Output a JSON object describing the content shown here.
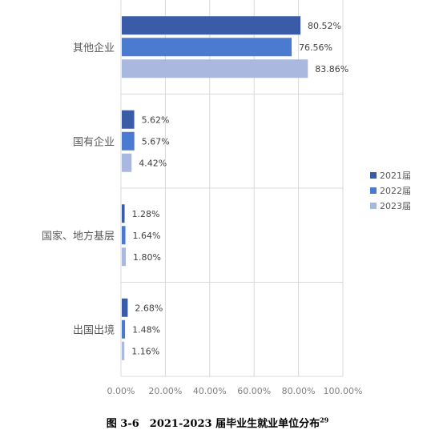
{
  "chart_data": {
    "type": "bar",
    "orientation": "horizontal",
    "categories": [
      "其他企业",
      "国有企业",
      "国家、地方基层",
      "出国出境"
    ],
    "series": [
      {
        "name": "2021届",
        "color": "#3a5ba8",
        "values": [
          80.52,
          5.62,
          1.28,
          2.68
        ]
      },
      {
        "name": "2022届",
        "color": "#4a7bd0",
        "values": [
          76.56,
          5.67,
          1.64,
          1.48
        ]
      },
      {
        "name": "2023届",
        "color": "#aab8df",
        "values": [
          83.86,
          4.42,
          1.8,
          1.16
        ]
      }
    ],
    "xlim": [
      0,
      100
    ],
    "x_ticks": [
      "0.00%",
      "20.00%",
      "40.00%",
      "60.00%",
      "80.00%",
      "100.00%"
    ],
    "grid": true,
    "legend": "right",
    "data_labels": [
      [
        "80.52%",
        "5.62%",
        "1.28%",
        "2.68%"
      ],
      [
        "76.56%",
        "5.67%",
        "1.64%",
        "1.48%"
      ],
      [
        "83.86%",
        "4.42%",
        "1.80%",
        "1.16%"
      ]
    ]
  },
  "caption": {
    "text": "图 3-6　2021-2023 届毕业生就业单位分布",
    "footnote": "29"
  }
}
